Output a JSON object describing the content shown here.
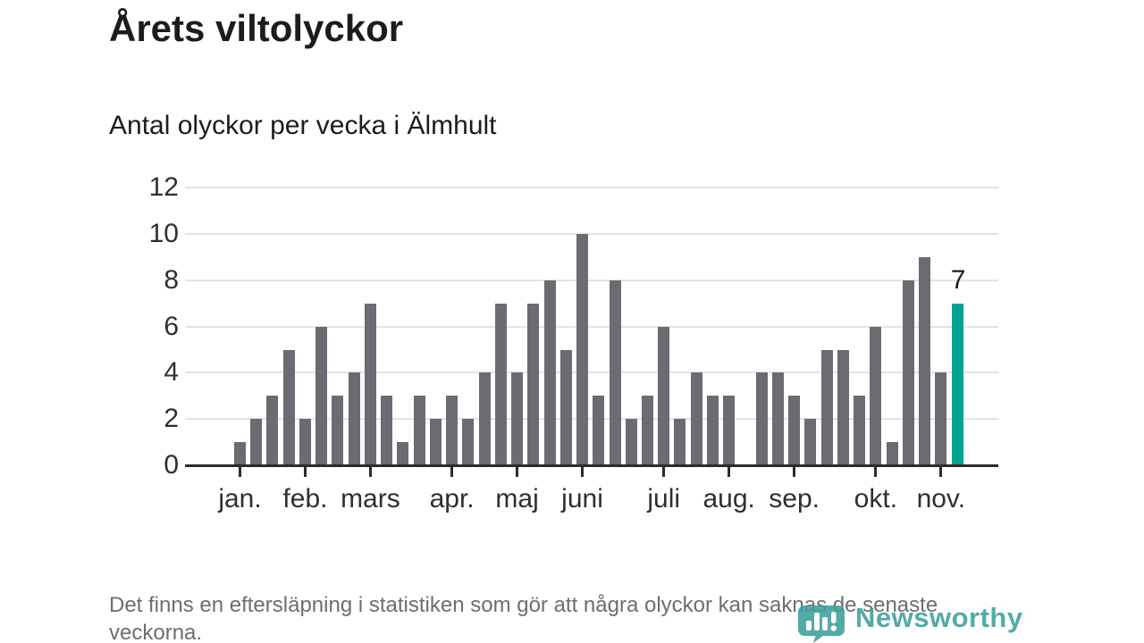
{
  "header": {
    "title": "Årets viltolyckor",
    "subtitle": "Antal olyckor per vecka i Älmhult"
  },
  "chart_data": {
    "type": "bar",
    "title": "Årets viltolyckor",
    "subtitle": "Antal olyckor per vecka i Älmhult",
    "x_unit": "vecka (week of year)",
    "ylabel": "",
    "ylim": [
      0,
      12
    ],
    "yticks": [
      0,
      2,
      4,
      6,
      8,
      10,
      12
    ],
    "grid": "horizontal",
    "values": [
      1,
      2,
      3,
      5,
      2,
      6,
      3,
      4,
      7,
      3,
      1,
      3,
      2,
      3,
      2,
      4,
      7,
      4,
      7,
      8,
      5,
      10,
      3,
      8,
      2,
      3,
      6,
      2,
      4,
      3,
      3,
      0,
      4,
      4,
      3,
      2,
      5,
      5,
      3,
      6,
      1,
      8,
      9,
      4,
      7
    ],
    "month_ticks": [
      {
        "label": "jan.",
        "week_index": 0
      },
      {
        "label": "feb.",
        "week_index": 4
      },
      {
        "label": "mars",
        "week_index": 8
      },
      {
        "label": "apr.",
        "week_index": 13
      },
      {
        "label": "maj",
        "week_index": 17
      },
      {
        "label": "juni",
        "week_index": 21
      },
      {
        "label": "juli",
        "week_index": 26
      },
      {
        "label": "aug.",
        "week_index": 30
      },
      {
        "label": "sep.",
        "week_index": 34
      },
      {
        "label": "okt.",
        "week_index": 39
      },
      {
        "label": "nov.",
        "week_index": 43
      }
    ],
    "highlight_last_bar": true,
    "last_value_label": "7",
    "colors": {
      "bar": "#6b6b72",
      "highlight": "#00a296",
      "gridline": "#e3e3e3",
      "axis": "#2b2b2b"
    }
  },
  "footer": {
    "note": "Det finns en eftersläpning i statistiken som gör att några olyckor kan saknas de senaste veckorna."
  },
  "branding": {
    "name": "Newsworthy",
    "color": "#3ca09b"
  }
}
